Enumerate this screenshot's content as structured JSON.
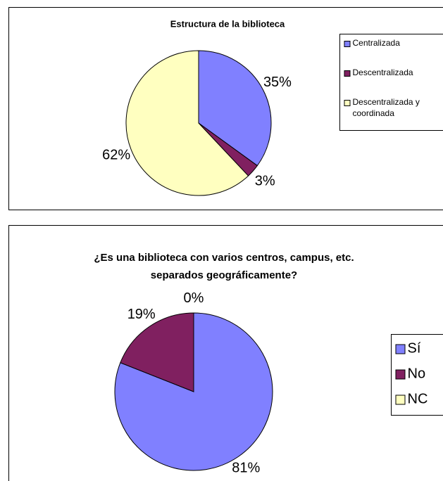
{
  "chart_data": [
    {
      "type": "pie",
      "title": [
        "Estructura de la biblioteca"
      ],
      "categories": [
        "Centralizada",
        "Descentralizada",
        "Descentralizada y coordinada"
      ],
      "values": [
        35,
        3,
        62
      ],
      "value_labels": [
        "35%",
        "3%",
        "62%"
      ],
      "colors": [
        "#8080ff",
        "#802060",
        "#ffffc0"
      ]
    },
    {
      "type": "pie",
      "title": [
        "¿Es una biblioteca con varios centros, campus, etc.",
        "separados geográficamente?"
      ],
      "categories": [
        "Sí",
        "No",
        "NC"
      ],
      "values": [
        81,
        19,
        0
      ],
      "value_labels": [
        "81%",
        "19%",
        "0%"
      ],
      "colors": [
        "#8080ff",
        "#802060",
        "#ffffc0"
      ]
    }
  ]
}
